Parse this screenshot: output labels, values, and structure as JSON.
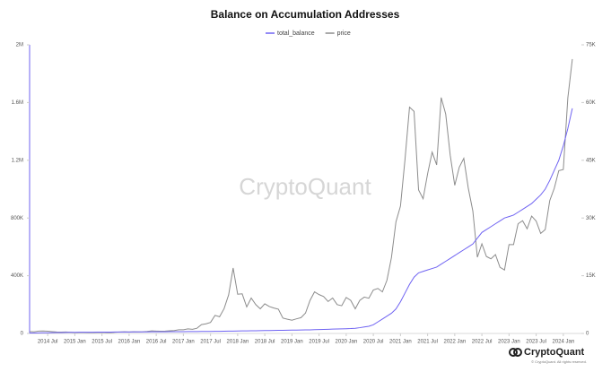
{
  "chart_data": {
    "type": "line",
    "title": "Balance on Accumulation Addresses",
    "watermark": "CryptoQuant",
    "footer_brand": "CryptoQuant",
    "copyright": "© CryptoQuant. All rights reserved.",
    "x": [
      "2014-03",
      "2014-04",
      "2014-05",
      "2014-06",
      "2014-07",
      "2014-08",
      "2014-09",
      "2014-10",
      "2014-11",
      "2014-12",
      "2015-01",
      "2015-02",
      "2015-03",
      "2015-04",
      "2015-05",
      "2015-06",
      "2015-07",
      "2015-08",
      "2015-09",
      "2015-10",
      "2015-11",
      "2015-12",
      "2016-01",
      "2016-02",
      "2016-03",
      "2016-04",
      "2016-05",
      "2016-06",
      "2016-07",
      "2016-08",
      "2016-09",
      "2016-10",
      "2016-11",
      "2016-12",
      "2017-01",
      "2017-02",
      "2017-03",
      "2017-04",
      "2017-05",
      "2017-06",
      "2017-07",
      "2017-08",
      "2017-09",
      "2017-10",
      "2017-11",
      "2017-12",
      "2018-01",
      "2018-02",
      "2018-03",
      "2018-04",
      "2018-05",
      "2018-06",
      "2018-07",
      "2018-08",
      "2018-09",
      "2018-10",
      "2018-11",
      "2018-12",
      "2019-01",
      "2019-02",
      "2019-03",
      "2019-04",
      "2019-05",
      "2019-06",
      "2019-07",
      "2019-08",
      "2019-09",
      "2019-10",
      "2019-11",
      "2019-12",
      "2020-01",
      "2020-02",
      "2020-03",
      "2020-04",
      "2020-05",
      "2020-06",
      "2020-07",
      "2020-08",
      "2020-09",
      "2020-10",
      "2020-11",
      "2020-12",
      "2021-01",
      "2021-02",
      "2021-03",
      "2021-04",
      "2021-05",
      "2021-06",
      "2021-07",
      "2021-08",
      "2021-09",
      "2021-10",
      "2021-11",
      "2021-12",
      "2022-01",
      "2022-02",
      "2022-03",
      "2022-04",
      "2022-05",
      "2022-06",
      "2022-07",
      "2022-08",
      "2022-09",
      "2022-10",
      "2022-11",
      "2022-12",
      "2023-01",
      "2023-02",
      "2023-03",
      "2023-04",
      "2023-05",
      "2023-06",
      "2023-07",
      "2023-08",
      "2023-09",
      "2023-10",
      "2023-11",
      "2023-12",
      "2024-01",
      "2024-02",
      "2024-03"
    ],
    "series": [
      {
        "name": "total_balance",
        "color": "#6f63f2",
        "values": [
          3000,
          3500,
          4000,
          4500,
          5000,
          5500,
          6000,
          6500,
          7000,
          7500,
          8000,
          8200,
          8400,
          8600,
          8800,
          9000,
          9200,
          9400,
          9600,
          9800,
          10000,
          10200,
          10400,
          10600,
          10800,
          11000,
          11200,
          11400,
          11600,
          11800,
          12000,
          12200,
          12400,
          12600,
          12800,
          13000,
          13200,
          13400,
          13600,
          13800,
          14000,
          14500,
          15000,
          15500,
          16000,
          16500,
          17000,
          17500,
          18000,
          18500,
          19000,
          19500,
          20000,
          20500,
          21000,
          21500,
          22000,
          22500,
          23000,
          23500,
          24000,
          24500,
          25000,
          26000,
          27000,
          28000,
          29000,
          30000,
          31000,
          32000,
          33000,
          34000,
          36000,
          40000,
          45000,
          50000,
          60000,
          80000,
          100000,
          120000,
          140000,
          170000,
          220000,
          280000,
          340000,
          390000,
          420000,
          430000,
          440000,
          450000,
          460000,
          480000,
          500000,
          520000,
          540000,
          560000,
          580000,
          600000,
          620000,
          660000,
          700000,
          720000,
          740000,
          760000,
          780000,
          800000,
          810000,
          820000,
          840000,
          860000,
          880000,
          900000,
          930000,
          960000,
          1000000,
          1060000,
          1130000,
          1200000,
          1300000,
          1420000,
          1560000
        ]
      },
      {
        "name": "price",
        "color": "#8c8c8c",
        "axis": "y2",
        "values": [
          500,
          450,
          600,
          640,
          590,
          480,
          390,
          340,
          380,
          320,
          220,
          250,
          250,
          235,
          230,
          260,
          285,
          230,
          236,
          315,
          380,
          430,
          370,
          440,
          415,
          450,
          530,
          670,
          625,
          575,
          610,
          700,
          745,
          960,
          970,
          1190,
          1080,
          1350,
          2300,
          2500,
          2870,
          4700,
          4340,
          6450,
          10000,
          17000,
          10200,
          10300,
          6900,
          9200,
          7500,
          6400,
          7700,
          7000,
          6600,
          6300,
          4000,
          3700,
          3450,
          3800,
          4100,
          5300,
          8600,
          10800,
          10100,
          9600,
          8300,
          9200,
          7500,
          7200,
          9350,
          8600,
          6400,
          8600,
          9450,
          9150,
          11300,
          11700,
          10800,
          13800,
          19700,
          29000,
          33100,
          45200,
          58800,
          57700,
          37300,
          35000,
          41500,
          47100,
          43800,
          61300,
          57000,
          46300,
          38500,
          43200,
          45500,
          37700,
          31800,
          19800,
          23300,
          20000,
          19400,
          20500,
          17200,
          16500,
          23100,
          23100,
          28500,
          29300,
          27200,
          30500,
          29200,
          26000,
          27000,
          34500,
          37700,
          42300,
          42600,
          61200,
          71300
        ]
      }
    ],
    "xlim": [
      "2014-03",
      "2024-05"
    ],
    "xticks": [
      {
        "value": "2014-07",
        "label": "2014 Jul"
      },
      {
        "value": "2015-01",
        "label": "2015 Jan"
      },
      {
        "value": "2015-07",
        "label": "2015 Jul"
      },
      {
        "value": "2016-01",
        "label": "2016 Jan"
      },
      {
        "value": "2016-07",
        "label": "2016 Jul"
      },
      {
        "value": "2017-01",
        "label": "2017 Jan"
      },
      {
        "value": "2017-07",
        "label": "2017 Jul"
      },
      {
        "value": "2018-01",
        "label": "2018 Jan"
      },
      {
        "value": "2018-07",
        "label": "2018 Jul"
      },
      {
        "value": "2019-01",
        "label": "2019 Jan"
      },
      {
        "value": "2019-07",
        "label": "2019 Jul"
      },
      {
        "value": "2020-01",
        "label": "2020 Jan"
      },
      {
        "value": "2020-07",
        "label": "2020 Jul"
      },
      {
        "value": "2021-01",
        "label": "2021 Jan"
      },
      {
        "value": "2021-07",
        "label": "2021 Jul"
      },
      {
        "value": "2022-01",
        "label": "2022 Jan"
      },
      {
        "value": "2022-07",
        "label": "2022 Jul"
      },
      {
        "value": "2023-01",
        "label": "2023 Jan"
      },
      {
        "value": "2023-07",
        "label": "2023 Jul"
      },
      {
        "value": "2024-01",
        "label": "2024 Jan"
      }
    ],
    "ylim": [
      0,
      2000000
    ],
    "yticks": [
      0,
      {
        "value": 400000,
        "label": "400K"
      },
      {
        "value": 800000,
        "label": "800K"
      },
      {
        "value": 1200000,
        "label": "1.2M"
      },
      {
        "value": 1600000,
        "label": "1.6M"
      },
      {
        "value": 2000000,
        "label": "2M"
      }
    ],
    "y2lim": [
      0,
      75000
    ],
    "y2ticks": [
      0,
      {
        "value": 15000,
        "label": "15K"
      },
      {
        "value": 30000,
        "label": "30K"
      },
      {
        "value": 45000,
        "label": "45K"
      },
      {
        "value": 60000,
        "label": "60K"
      },
      {
        "value": 75000,
        "label": "75K"
      }
    ]
  }
}
